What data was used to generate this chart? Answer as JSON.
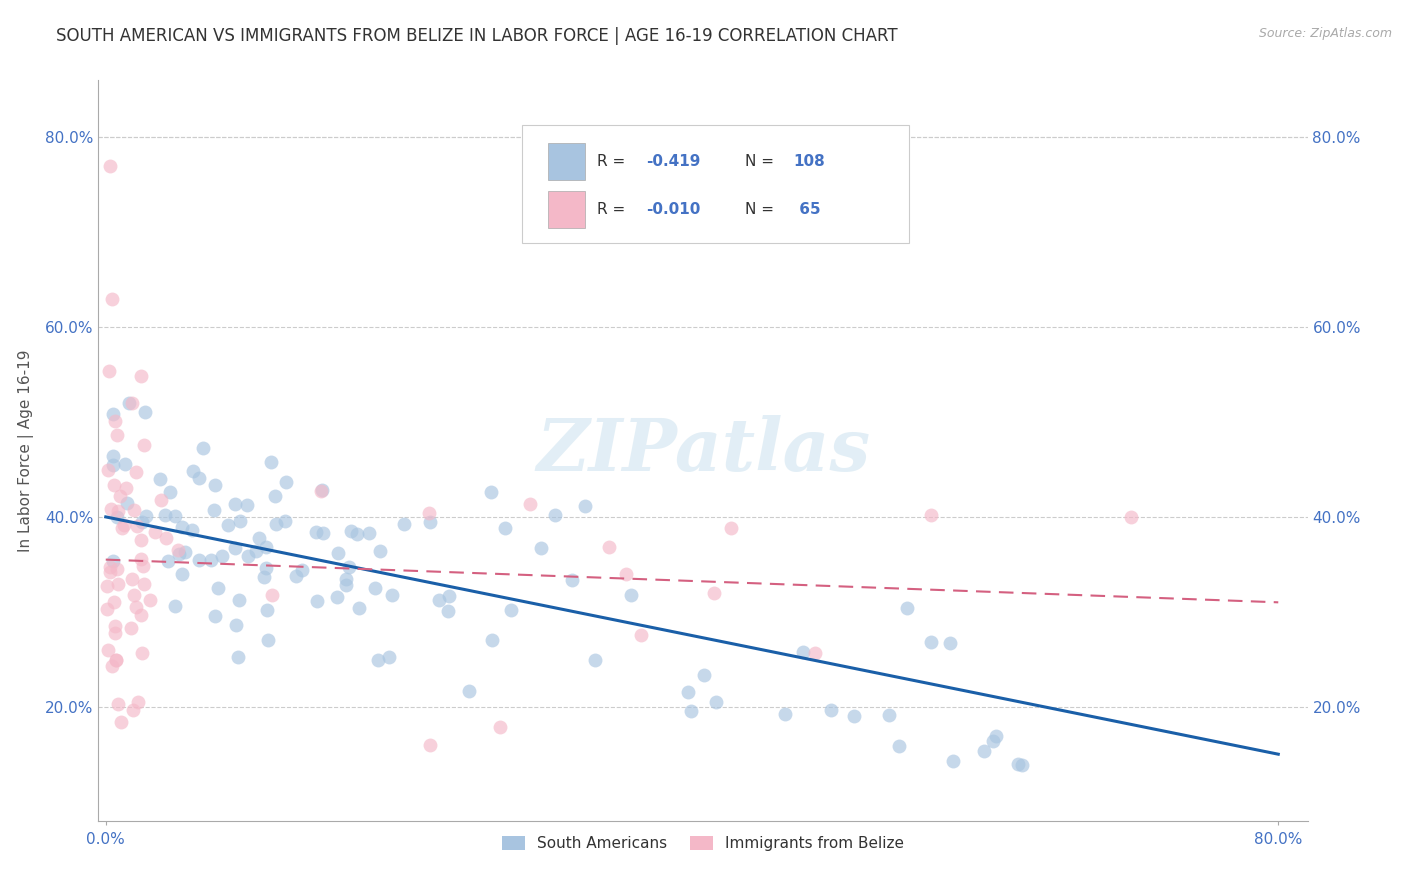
{
  "title": "SOUTH AMERICAN VS IMMIGRANTS FROM BELIZE IN LABOR FORCE | AGE 16-19 CORRELATION CHART",
  "source": "Source: ZipAtlas.com",
  "ylabel": "In Labor Force | Age 16-19",
  "xlim": [
    -0.005,
    0.82
  ],
  "ylim": [
    0.08,
    0.86
  ],
  "xticks": [
    0.0,
    0.8
  ],
  "xticklabels": [
    "0.0%",
    "80.0%"
  ],
  "yticks": [
    0.2,
    0.4,
    0.6,
    0.8
  ],
  "yticklabels": [
    "20.0%",
    "40.0%",
    "60.0%",
    "80.0%"
  ],
  "legend_r1_label": "R = ",
  "legend_r1_val": "-0.419",
  "legend_n1_label": "N = ",
  "legend_n1_val": "108",
  "legend_r2_label": "R = ",
  "legend_r2_val": "-0.010",
  "legend_n2_label": "N = ",
  "legend_n2_val": " 65",
  "color_blue": "#a8c4e0",
  "color_blue_line": "#1a5fa8",
  "color_pink": "#f4b8c8",
  "color_pink_line": "#d46080",
  "marker_size": 100,
  "alpha_scatter": 0.65,
  "watermark": "ZIPatlas",
  "background_color": "#ffffff",
  "grid_color": "#cccccc",
  "title_color": "#333333",
  "axis_label_color": "#555555",
  "tick_label_color": "#4472c4",
  "legend_text_color": "#333333",
  "legend_val_color": "#4472c4"
}
